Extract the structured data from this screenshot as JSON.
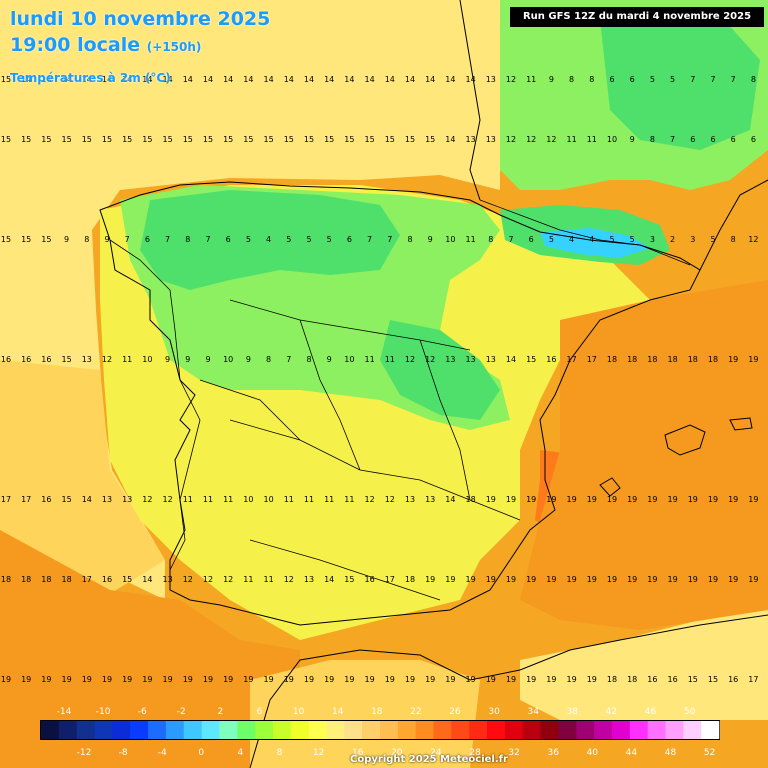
{
  "header": {
    "title_line1": "lundi 10 novembre 2025",
    "title_line2_main": "19:00 locale",
    "title_line2_lead": "(+150h)",
    "variable": "Températures à 2m (°C)",
    "run": "Run GFS 12Z du mardi 4 novembre 2025"
  },
  "footer": {
    "copyright": "Copyright 2025 Meteociel.fr"
  },
  "legend": {
    "top_ticks": [
      "-14",
      "-10",
      "-6",
      "-2",
      "2",
      "6",
      "10",
      "14",
      "18",
      "22",
      "26",
      "30",
      "34",
      "38",
      "42",
      "46",
      "50"
    ],
    "bottom_ticks": [
      "-12",
      "-8",
      "-4",
      "0",
      "4",
      "8",
      "12",
      "16",
      "20",
      "24",
      "28",
      "32",
      "36",
      "40",
      "44",
      "48",
      "52"
    ],
    "colors": [
      "#0a1040",
      "#0f1f6a",
      "#12308f",
      "#1036b8",
      "#0d2bd8",
      "#0a3bff",
      "#1e6cff",
      "#2a9cff",
      "#3fc8ff",
      "#5de8ff",
      "#7effc0",
      "#6cff6a",
      "#9cff3a",
      "#c8ff2a",
      "#f0ff2a",
      "#ffff50",
      "#fff07a",
      "#ffe08a",
      "#ffd06a",
      "#ffbe50",
      "#ffa830",
      "#ff8c1e",
      "#ff6a1a",
      "#ff4a18",
      "#ff2a14",
      "#ff0a10",
      "#e00010",
      "#b8000e",
      "#90000c",
      "#800040",
      "#a00070",
      "#c000a0",
      "#e000d0",
      "#ff30ff",
      "#ff70ff",
      "#ffa0ff",
      "#ffd0ff",
      "#ffffff"
    ]
  },
  "colors": {
    "warm_sea": "#f59a1e",
    "plateau_yellow": "#f6f04a",
    "cool_green": "#8cf060",
    "cold_green": "#4fe06c",
    "coldest_blue": "#36d2ff",
    "pale_yellow": "#ffe77c",
    "title_blue": "#1a9cff"
  },
  "grid_values": {
    "row_top": [
      "15",
      "14",
      "14",
      "14",
      "14",
      "14",
      "14",
      "14",
      "14",
      "14",
      "14",
      "14",
      "14",
      "14",
      "14",
      "14",
      "14",
      "14",
      "14",
      "14",
      "14",
      "14",
      "14",
      "14",
      "13",
      "12",
      "11",
      "9",
      "8",
      "8",
      "6",
      "6",
      "5",
      "5",
      "7",
      "7",
      "7",
      "8"
    ],
    "row_atlantic": [
      "15",
      "15",
      "15",
      "15",
      "15",
      "15",
      "15",
      "15",
      "15",
      "15",
      "15",
      "15",
      "15",
      "15",
      "15",
      "15",
      "15",
      "15",
      "15",
      "15",
      "15",
      "15",
      "14",
      "13",
      "13",
      "12",
      "12",
      "12",
      "11",
      "11",
      "10",
      "9",
      "8",
      "7",
      "6",
      "6",
      "6",
      "6"
    ],
    "row_north": [
      "15",
      "15",
      "15",
      "9",
      "8",
      "9",
      "7",
      "6",
      "7",
      "8",
      "7",
      "6",
      "5",
      "4",
      "5",
      "5",
      "5",
      "6",
      "7",
      "7",
      "8",
      "9",
      "10",
      "11",
      "8",
      "7",
      "6",
      "5",
      "4",
      "4",
      "5",
      "5",
      "3",
      "2",
      "3",
      "5",
      "8",
      "12"
    ],
    "row_centre": [
      "16",
      "16",
      "16",
      "15",
      "13",
      "12",
      "11",
      "10",
      "9",
      "9",
      "9",
      "10",
      "9",
      "8",
      "7",
      "8",
      "9",
      "10",
      "11",
      "11",
      "12",
      "12",
      "13",
      "13",
      "13",
      "14",
      "15",
      "16",
      "17",
      "17",
      "18",
      "18",
      "18",
      "18",
      "18",
      "18",
      "19",
      "19"
    ],
    "row_plateau": [
      "17",
      "17",
      "16",
      "15",
      "14",
      "13",
      "13",
      "12",
      "12",
      "11",
      "11",
      "11",
      "10",
      "10",
      "11",
      "11",
      "11",
      "11",
      "12",
      "12",
      "13",
      "13",
      "14",
      "18",
      "19",
      "19",
      "19",
      "19",
      "19",
      "19",
      "19",
      "19",
      "19",
      "19",
      "19",
      "19",
      "19",
      "19"
    ],
    "row_south": [
      "18",
      "18",
      "18",
      "18",
      "17",
      "16",
      "15",
      "14",
      "13",
      "12",
      "12",
      "12",
      "11",
      "11",
      "12",
      "13",
      "14",
      "15",
      "16",
      "17",
      "18",
      "19",
      "19",
      "19",
      "19",
      "19",
      "19",
      "19",
      "19",
      "19",
      "19",
      "19",
      "19",
      "19",
      "19",
      "19",
      "19",
      "19"
    ],
    "row_bottom": [
      "19",
      "19",
      "19",
      "19",
      "19",
      "19",
      "19",
      "19",
      "19",
      "19",
      "19",
      "19",
      "19",
      "19",
      "19",
      "19",
      "19",
      "19",
      "19",
      "19",
      "19",
      "19",
      "19",
      "19",
      "19",
      "19",
      "19",
      "19",
      "19",
      "19",
      "18",
      "18",
      "16",
      "16",
      "15",
      "15",
      "16",
      "17"
    ]
  }
}
